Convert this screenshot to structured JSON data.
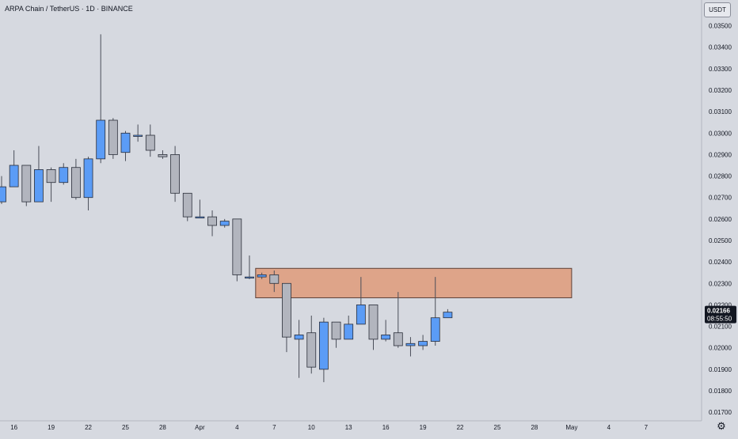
{
  "header": {
    "title": "ARPA Chain / TetherUS · 1D · BINANCE",
    "currency_button": "USDT",
    "settings_icon": "gear-icon"
  },
  "colors": {
    "background": "#d6d9e0",
    "up_candle": "#5b9cf6",
    "down_candle": "#b2b5be",
    "wick": "#4a4e59",
    "zone_fill": "#dea489",
    "zone_border": "#5d4037"
  },
  "price_label": {
    "price": "0.02166",
    "countdown": "08:55:50"
  },
  "chart_data": {
    "type": "candlestick",
    "title": "ARPA Chain / TetherUS · 1D · BINANCE",
    "xlabel": "",
    "ylabel": "",
    "ylim": [
      0.0166,
      0.0362
    ],
    "y_ticks": [
      "0.03500",
      "0.03400",
      "0.03300",
      "0.03200",
      "0.03100",
      "0.03000",
      "0.02900",
      "0.02800",
      "0.02700",
      "0.02600",
      "0.02500",
      "0.02400",
      "0.02300",
      "0.02200",
      "0.02100",
      "0.02000",
      "0.01900",
      "0.01800",
      "0.01700"
    ],
    "x_ticks": [
      {
        "label": "16",
        "bar": 1
      },
      {
        "label": "19",
        "bar": 4
      },
      {
        "label": "22",
        "bar": 7
      },
      {
        "label": "25",
        "bar": 10
      },
      {
        "label": "28",
        "bar": 13
      },
      {
        "label": "Apr",
        "bar": 16
      },
      {
        "label": "4",
        "bar": 19
      },
      {
        "label": "7",
        "bar": 22
      },
      {
        "label": "10",
        "bar": 25
      },
      {
        "label": "13",
        "bar": 28
      },
      {
        "label": "16",
        "bar": 31
      },
      {
        "label": "19",
        "bar": 34
      },
      {
        "label": "22",
        "bar": 37
      },
      {
        "label": "25",
        "bar": 40
      },
      {
        "label": "28",
        "bar": 43
      },
      {
        "label": "May",
        "bar": 46
      },
      {
        "label": "4",
        "bar": 49
      },
      {
        "label": "7",
        "bar": 52
      }
    ],
    "candles": [
      {
        "o": 0.0268,
        "h": 0.028,
        "l": 0.0267,
        "c": 0.0275
      },
      {
        "o": 0.0275,
        "h": 0.0292,
        "l": 0.0275,
        "c": 0.0285
      },
      {
        "o": 0.0285,
        "h": 0.0285,
        "l": 0.0266,
        "c": 0.0268
      },
      {
        "o": 0.0268,
        "h": 0.0294,
        "l": 0.0268,
        "c": 0.0283
      },
      {
        "o": 0.0283,
        "h": 0.0284,
        "l": 0.0268,
        "c": 0.0277
      },
      {
        "o": 0.0277,
        "h": 0.0286,
        "l": 0.0276,
        "c": 0.0284
      },
      {
        "o": 0.0284,
        "h": 0.0288,
        "l": 0.0269,
        "c": 0.027
      },
      {
        "o": 0.027,
        "h": 0.0289,
        "l": 0.0264,
        "c": 0.0288
      },
      {
        "o": 0.0288,
        "h": 0.0346,
        "l": 0.0286,
        "c": 0.0306
      },
      {
        "o": 0.0306,
        "h": 0.0307,
        "l": 0.0288,
        "c": 0.029
      },
      {
        "o": 0.0291,
        "h": 0.0301,
        "l": 0.0287,
        "c": 0.03
      },
      {
        "o": 0.0299,
        "h": 0.0304,
        "l": 0.0296,
        "c": 0.0299
      },
      {
        "o": 0.0299,
        "h": 0.0304,
        "l": 0.0289,
        "c": 0.0292
      },
      {
        "o": 0.029,
        "h": 0.0292,
        "l": 0.0288,
        "c": 0.0289
      },
      {
        "o": 0.029,
        "h": 0.0294,
        "l": 0.0268,
        "c": 0.0272
      },
      {
        "o": 0.0272,
        "h": 0.0272,
        "l": 0.0259,
        "c": 0.0261
      },
      {
        "o": 0.0261,
        "h": 0.0269,
        "l": 0.0261,
        "c": 0.0261
      },
      {
        "o": 0.0261,
        "h": 0.0264,
        "l": 0.0252,
        "c": 0.0257
      },
      {
        "o": 0.0257,
        "h": 0.026,
        "l": 0.0256,
        "c": 0.0259
      },
      {
        "o": 0.026,
        "h": 0.026,
        "l": 0.0231,
        "c": 0.0234
      },
      {
        "o": 0.0233,
        "h": 0.0243,
        "l": 0.0232,
        "c": 0.0233
      },
      {
        "o": 0.0233,
        "h": 0.0235,
        "l": 0.0232,
        "c": 0.0234
      },
      {
        "o": 0.0234,
        "h": 0.0236,
        "l": 0.0226,
        "c": 0.023
      },
      {
        "o": 0.023,
        "h": 0.023,
        "l": 0.0198,
        "c": 0.0205
      },
      {
        "o": 0.0204,
        "h": 0.0213,
        "l": 0.0186,
        "c": 0.0206
      },
      {
        "o": 0.0207,
        "h": 0.0215,
        "l": 0.0188,
        "c": 0.0191
      },
      {
        "o": 0.019,
        "h": 0.0214,
        "l": 0.0184,
        "c": 0.0212
      },
      {
        "o": 0.0212,
        "h": 0.0212,
        "l": 0.02,
        "c": 0.0204
      },
      {
        "o": 0.0204,
        "h": 0.0215,
        "l": 0.0204,
        "c": 0.0211
      },
      {
        "o": 0.0211,
        "h": 0.0233,
        "l": 0.0211,
        "c": 0.022
      },
      {
        "o": 0.022,
        "h": 0.022,
        "l": 0.0199,
        "c": 0.0204
      },
      {
        "o": 0.0204,
        "h": 0.0213,
        "l": 0.0203,
        "c": 0.0206
      },
      {
        "o": 0.0207,
        "h": 0.0226,
        "l": 0.02,
        "c": 0.0201
      },
      {
        "o": 0.0201,
        "h": 0.0205,
        "l": 0.0196,
        "c": 0.0202
      },
      {
        "o": 0.0201,
        "h": 0.0206,
        "l": 0.0199,
        "c": 0.0203
      },
      {
        "o": 0.0203,
        "h": 0.0233,
        "l": 0.0201,
        "c": 0.0214
      },
      {
        "o": 0.0214,
        "h": 0.0218,
        "l": 0.0214,
        "c": 0.02166
      }
    ],
    "zone": {
      "bar_start": 20.5,
      "bar_end": 46.0,
      "top": 0.0237,
      "bottom": 0.02233
    },
    "grid": false,
    "legend": "none"
  }
}
